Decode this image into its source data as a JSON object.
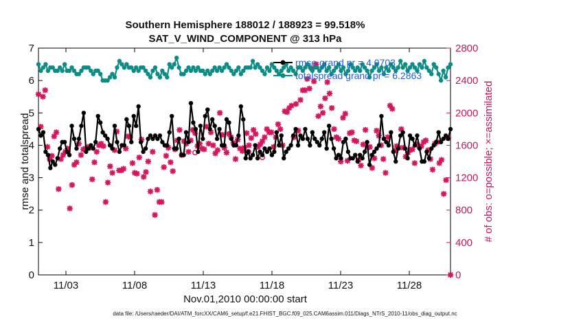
{
  "chart_data": {
    "type": "line",
    "title": "Southern Hemisphere 188012 / 188923 = 99.518%",
    "subtitle": "SAT_V_WIND_COMPONENT @ 313 hPa",
    "xlabel": "Nov.01,2010 00:00:00 start",
    "ylabel": "rmse and totalspread",
    "y2label": "# of obs: o=possible; ×=assimilated",
    "ylim": [
      0,
      7
    ],
    "y2lim": [
      0,
      2800
    ],
    "xlim": [
      0,
      30
    ],
    "y_ticks": [
      "0",
      "1",
      "2",
      "3",
      "4",
      "5",
      "6",
      "7"
    ],
    "y2_ticks": [
      "0",
      "400",
      "800",
      "1200",
      "1600",
      "2000",
      "2400",
      "2800"
    ],
    "x_ticks": [
      {
        "label": "11/03",
        "value": 2
      },
      {
        "label": "11/08",
        "value": 7
      },
      {
        "label": "11/13",
        "value": 12
      },
      {
        "label": "11/18",
        "value": 17
      },
      {
        "label": "11/23",
        "value": 22
      },
      {
        "label": "11/28",
        "value": 27
      }
    ],
    "colors": {
      "rmse": "#000000",
      "spread": "#0b8c84",
      "obs": "#d6155f",
      "legend_text": "#1f5fd6"
    },
    "series": [
      {
        "name": "rmse grand pr = 4.0703",
        "values": [
          4.5,
          4.3,
          4.4,
          3.8,
          3.7,
          3.3,
          3.5,
          3.4,
          3.6,
          3.9,
          4.1,
          4.1,
          3.8,
          3.7,
          4.6,
          4.2,
          3.9,
          4.2,
          4.6,
          5.0,
          3.8,
          3.9,
          4.0,
          3.9,
          4.1,
          4.9,
          4.7,
          4.4,
          4.3,
          4.2,
          4.0,
          3.9,
          4.6,
          4.1,
          3.8,
          4.0,
          4.0,
          4.8,
          4.6,
          4.1,
          4.9,
          4.6,
          5.2,
          4.1,
          3.8,
          3.9,
          4.2,
          4.3,
          4.2,
          4.3,
          4.2,
          4.3,
          4.1,
          4.0,
          4.0,
          4.4,
          4.9,
          3.9,
          3.9,
          4.2,
          3.7,
          3.7,
          4.4,
          4.1,
          5.3,
          4.7,
          4.5,
          3.8,
          4.6,
          4.2,
          4.9,
          5.1,
          4.5,
          4.8,
          4.6,
          4.2,
          4.5,
          4.0,
          4.0,
          4.8,
          4.7,
          4.2,
          4.0,
          4.0,
          4.3,
          5.2,
          4.8,
          3.6,
          3.8,
          3.6,
          3.7,
          4.0,
          3.6,
          3.8,
          3.7,
          3.9,
          3.8,
          3.9,
          3.7,
          3.8,
          4.4,
          4.0,
          4.3,
          3.6,
          3.8,
          3.9,
          4.0,
          4.3,
          4.5,
          4.0,
          4.3,
          4.2,
          4.5,
          4.2,
          4.0,
          4.4,
          4.2,
          4.1,
          4.0,
          4.2,
          4.4,
          3.9,
          4.6,
          4.2,
          3.9,
          3.6,
          3.7,
          3.6,
          4.1,
          4.2,
          3.8,
          3.6,
          3.6,
          3.7,
          3.5,
          3.7,
          3.6,
          3.8,
          4.1,
          3.4,
          3.7,
          3.8,
          3.9,
          4.0,
          4.9,
          4.2,
          4.1,
          4.0,
          4.4,
          3.8,
          3.5,
          3.9,
          4.3,
          4.4,
          3.9,
          3.6,
          4.3,
          4.2,
          4.0,
          4.3,
          3.9,
          3.5,
          3.5,
          3.8,
          3.6,
          3.9,
          4.0,
          4.1,
          4.4,
          4.1,
          4.2,
          4.3,
          4.2,
          4.5
        ]
      },
      {
        "name": "totalspread grand pr = 6.2863",
        "values": [
          6.5,
          6.3,
          6.4,
          6.5,
          6.3,
          6.4,
          6.4,
          6.3,
          6.3,
          6.4,
          6.3,
          6.5,
          6.3,
          6.3,
          6.4,
          6.3,
          6.2,
          6.2,
          6.3,
          6.4,
          6.4,
          6.4,
          6.3,
          6.2,
          6.3,
          6.3,
          6.2,
          6.0,
          6.0,
          6.0,
          6.1,
          6.2,
          6.1,
          6.4,
          6.6,
          6.5,
          6.4,
          6.5,
          6.4,
          6.4,
          6.3,
          6.4,
          6.3,
          6.4,
          6.4,
          6.3,
          6.2,
          6.1,
          6.3,
          6.4,
          6.2,
          6.1,
          6.3,
          6.2,
          6.1,
          6.5,
          6.4,
          6.5,
          6.7,
          6.4,
          6.2,
          6.2,
          6.3,
          6.4,
          6.3,
          6.4,
          6.3,
          6.4,
          6.3,
          6.3,
          6.2,
          6.3,
          6.2,
          6.3,
          6.4,
          6.3,
          6.4,
          6.3,
          6.4,
          6.5,
          6.4,
          6.3,
          6.2,
          6.3,
          6.4,
          6.2,
          6.3,
          6.4,
          6.4,
          6.4,
          6.6,
          6.4,
          6.5,
          6.4,
          6.3,
          6.2,
          6.4,
          6.3,
          6.5,
          6.4,
          6.3,
          6.2,
          6.3,
          6.4,
          6.5,
          6.3,
          6.4,
          6.3,
          6.2,
          6.4,
          6.4,
          6.3,
          6.4,
          6.5,
          6.4,
          6.3,
          6.4,
          6.4,
          6.3,
          6.4,
          6.5,
          6.3,
          6.4,
          6.2,
          6.3,
          6.4,
          6.5,
          6.3,
          6.4,
          6.2,
          6.3,
          6.5,
          6.4,
          6.3,
          6.4,
          6.3,
          6.5,
          6.4,
          6.3,
          6.1,
          6.3,
          6.4,
          6.5,
          6.3,
          6.4,
          6.2,
          6.4,
          6.3,
          6.5,
          6.4,
          6.3,
          6.4,
          6.6,
          6.4,
          6.5,
          6.3,
          6.4,
          6.5,
          6.4,
          6.3,
          6.5,
          6.4,
          6.6,
          6.4,
          6.3,
          6.2,
          6.5,
          6.4,
          6.2,
          6.0,
          6.3,
          6.1,
          6.4,
          6.5
        ]
      },
      {
        "name": "# of obs assimilated",
        "axis": "right",
        "values": [
          2230,
          1830,
          2200,
          2280,
          1580,
          1430,
          1470,
          1710,
          1760,
          1060,
          1430,
          1480,
          1520,
          1560,
          820,
          1110,
          1360,
          1390,
          1620,
          1480,
          1550,
          1560,
          1580,
          1570,
          1180,
          1390,
          1520,
          1600,
          1620,
          1590,
          900,
          1140,
          1340,
          1260,
          1540,
          1770,
          1290,
          1290,
          1310,
          1560,
          1710,
          1700,
          1380,
          1260,
          1250,
          1450,
          1670,
          1210,
          1270,
          1400,
          1030,
          1520,
          740,
          1050,
          900,
          900,
          1330,
          1470,
          1570,
          1390,
          1280,
          1550,
          1660,
          1790,
          1480,
          1650,
          1620,
          1520,
          1660,
          1790,
          1750,
          1590,
          1620,
          1560,
          1550,
          1830,
          1620,
          1760,
          1600,
          1500,
          1540,
          2000,
          1730,
          1570,
          1510,
          1740,
          1700,
          1630,
          1430,
          1670,
          1560,
          1530,
          1570,
          1750,
          1600,
          1690,
          1790,
          1740,
          1580,
          1610,
          1650,
          1700,
          1800,
          1760,
          1760,
          1580,
          1700,
          1860,
          1800,
          1600,
          2020,
          2010,
          2060,
          2090,
          1700,
          2110,
          1780,
          2160,
          2280,
          2280,
          2420,
          2300,
          2550,
          2390,
          2600,
          1960,
          2080,
          2000,
          2180,
          2380,
          2240,
          2060,
          1800,
          1700,
          1680,
          1400,
          1940,
          1990,
          1410,
          1750,
          1760,
          1660,
          1650,
          1420,
          1350,
          1610,
          1790,
          1570,
          1580,
          1320,
          1440,
          1780,
          1720,
          1600,
          1430,
          1260,
          1700,
          2090,
          2050,
          1530,
          1590,
          1570,
          1800,
          1570,
          1460,
          1510,
          1540,
          1550,
          1380,
          1610,
          1590,
          1590,
          1640,
          1660,
          1540,
          1430,
          1300,
          1620,
          1640,
          1380,
          1420,
          1000,
          1170,
          1690,
          0
        ]
      },
      {
        "name": "# of obs possible",
        "axis": "right",
        "marker": "circle",
        "values": [
          1510,
          1520,
          1450
        ]
      }
    ],
    "obs_possible_x": [
      11.4,
      15.3,
      16.3
    ],
    "legend": {
      "placement": "top-right",
      "entries": [
        "rmse grand pr = 4.0703",
        "totalspread grand pr = 6.2863"
      ]
    },
    "footnote": "data file: /Users/raeder/DAI/ATM_forcXX/CAM6_setup/f.e21.FHIST_BGC.f09_025.CAM6assim.011/Diags_NTrS_2010-11/obs_diag_output.nc"
  }
}
